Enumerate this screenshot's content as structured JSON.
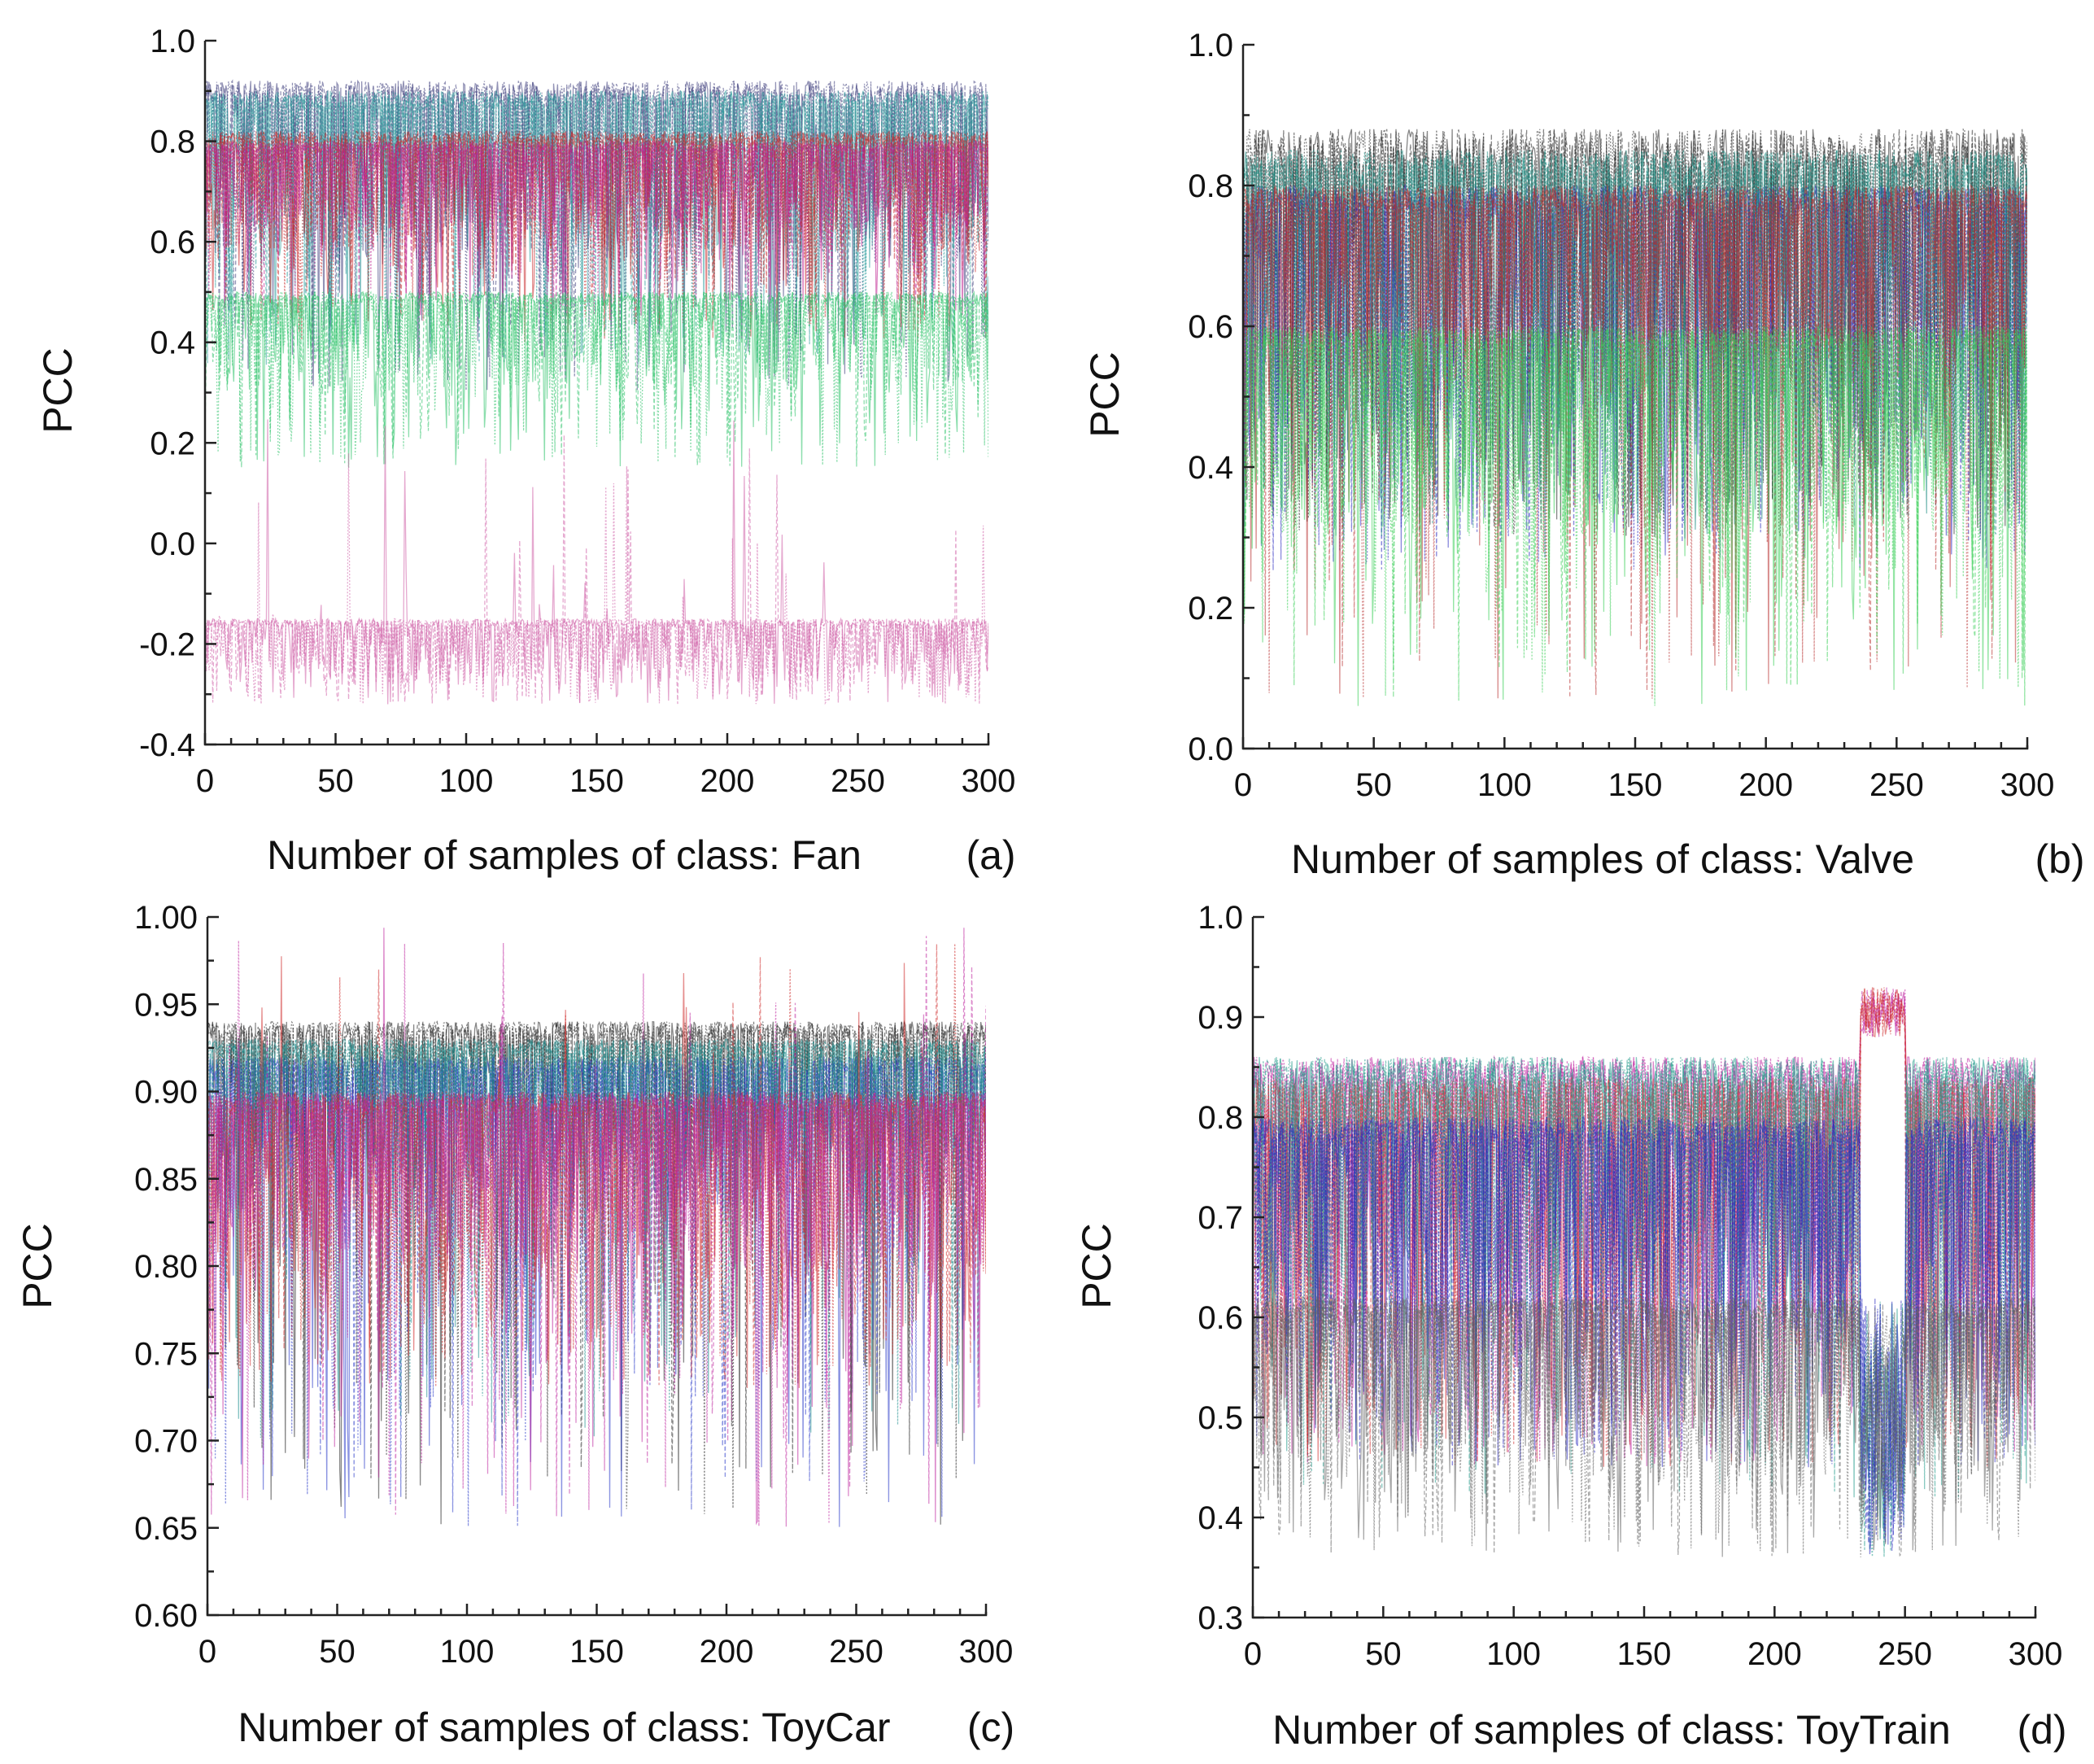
{
  "figure_title": "",
  "chart_data": [
    {
      "type": "line",
      "panel": "(a)",
      "class": "Fan",
      "xlabel": "Number of samples of class: Fan",
      "ylabel": "PCC",
      "xlim": [
        0,
        300
      ],
      "ylim": [
        -0.4,
        1.0
      ],
      "xticks": [
        0,
        50,
        100,
        150,
        200,
        250,
        300
      ],
      "yticks": [
        -0.4,
        -0.2,
        0.0,
        0.2,
        0.4,
        0.6,
        0.8,
        1.0
      ],
      "ytick_labels": [
        "-0.4",
        "-0.2",
        "0.0",
        "0.2",
        "0.4",
        "0.6",
        "0.8",
        "1.0"
      ],
      "num_samples": 300,
      "grid": false,
      "series": [
        {
          "name": "main band",
          "color": "#3b3b7a",
          "upper": 0.92,
          "lower": 0.55,
          "dip_min": 0.3
        },
        {
          "name": "teal band",
          "color": "#2a9a9a",
          "upper": 0.9,
          "lower": 0.58,
          "dip_min": 0.35
        },
        {
          "name": "red band",
          "color": "#c8282a",
          "upper": 0.82,
          "lower": 0.58,
          "dip_min": 0.4
        },
        {
          "name": "magenta band",
          "color": "#c02090",
          "upper": 0.8,
          "lower": 0.62,
          "dip_min": 0.45
        },
        {
          "name": "green outlier",
          "color": "#2ec26a",
          "upper": 0.5,
          "lower": 0.3,
          "dip_min": 0.15
        },
        {
          "name": "pink outlier",
          "color": "#d060a8",
          "upper": -0.15,
          "lower": -0.28,
          "dip_min": -0.32,
          "spike_max": 0.25
        }
      ]
    },
    {
      "type": "line",
      "panel": "(b)",
      "class": "Valve",
      "xlabel": "Number of samples of class: Valve",
      "ylabel": "PCC",
      "xlim": [
        0,
        300
      ],
      "ylim": [
        0.0,
        1.0
      ],
      "xticks": [
        0,
        50,
        100,
        150,
        200,
        250,
        300
      ],
      "yticks": [
        0.0,
        0.2,
        0.4,
        0.6,
        0.8,
        1.0
      ],
      "ytick_labels": [
        "0.0",
        "0.2",
        "0.4",
        "0.6",
        "0.8",
        "1.0"
      ],
      "num_samples": 300,
      "grid": false,
      "series": [
        {
          "name": "black band",
          "color": "#222222",
          "upper": 0.88,
          "lower": 0.4,
          "dip_min": 0.3
        },
        {
          "name": "blue band",
          "color": "#2a2ac0",
          "upper": 0.8,
          "lower": 0.4,
          "dip_min": 0.25
        },
        {
          "name": "teal band",
          "color": "#1a8a80",
          "upper": 0.85,
          "lower": 0.45,
          "dip_min": 0.3
        },
        {
          "name": "red band",
          "color": "#b83030",
          "upper": 0.8,
          "lower": 0.5,
          "dip_min": 0.07
        },
        {
          "name": "green outlier",
          "color": "#3ccf5a",
          "upper": 0.6,
          "lower": 0.3,
          "dip_min": 0.06
        }
      ]
    },
    {
      "type": "line",
      "panel": "(c)",
      "class": "ToyCar",
      "xlabel": "Number of samples of class: ToyCar",
      "ylabel": "PCC",
      "xlim": [
        0,
        300
      ],
      "ylim": [
        0.6,
        1.0
      ],
      "xticks": [
        0,
        50,
        100,
        150,
        200,
        250,
        300
      ],
      "yticks": [
        0.6,
        0.65,
        0.7,
        0.75,
        0.8,
        0.85,
        0.9,
        0.95,
        1.0
      ],
      "ytick_labels": [
        "0.60",
        "0.65",
        "0.70",
        "0.75",
        "0.80",
        "0.85",
        "0.90",
        "0.95",
        "1.00"
      ],
      "num_samples": 300,
      "grid": false,
      "series": [
        {
          "name": "black band",
          "color": "#222222",
          "upper": 0.94,
          "lower": 0.86,
          "dip_min": 0.65
        },
        {
          "name": "blue band",
          "color": "#2a3ac8",
          "upper": 0.92,
          "lower": 0.83,
          "dip_min": 0.65
        },
        {
          "name": "teal band",
          "color": "#1e8e8e",
          "upper": 0.93,
          "lower": 0.85,
          "dip_min": 0.7
        },
        {
          "name": "red band",
          "color": "#d03030",
          "upper": 0.9,
          "lower": 0.79,
          "dip_min": 0.73,
          "spike_max": 0.985
        },
        {
          "name": "magenta band",
          "color": "#c02aa0",
          "upper": 0.9,
          "lower": 0.8,
          "dip_min": 0.65,
          "spike_max": 0.995
        }
      ]
    },
    {
      "type": "line",
      "panel": "(d)",
      "class": "ToyTrain",
      "xlabel": "Number of samples of class: ToyTrain",
      "ylabel": "PCC",
      "xlim": [
        0,
        300
      ],
      "ylim": [
        0.3,
        1.0
      ],
      "xticks": [
        0,
        50,
        100,
        150,
        200,
        250,
        300
      ],
      "yticks": [
        0.3,
        0.4,
        0.5,
        0.6,
        0.7,
        0.8,
        0.9,
        1.0
      ],
      "ytick_labels": [
        "0.3",
        "0.4",
        "0.5",
        "0.6",
        "0.7",
        "0.8",
        "0.9",
        "1.0"
      ],
      "num_samples": 300,
      "grid": false,
      "regime_change": {
        "start": 233,
        "end": 250,
        "high_band": [
          0.88,
          0.93
        ],
        "low_band": [
          0.36,
          0.62
        ]
      },
      "series": [
        {
          "name": "magenta band",
          "color": "#c020a0",
          "upper": 0.86,
          "lower": 0.58,
          "dip_min": 0.45
        },
        {
          "name": "red band",
          "color": "#d03030",
          "upper": 0.84,
          "lower": 0.55,
          "dip_min": 0.45
        },
        {
          "name": "teal band",
          "color": "#209a8a",
          "upper": 0.86,
          "lower": 0.6,
          "dip_min": 0.42
        },
        {
          "name": "blue band",
          "color": "#2a2ac0",
          "upper": 0.8,
          "lower": 0.55,
          "dip_min": 0.45
        },
        {
          "name": "gray low band",
          "color": "#606060",
          "upper": 0.62,
          "lower": 0.44,
          "dip_min": 0.36
        }
      ]
    }
  ]
}
